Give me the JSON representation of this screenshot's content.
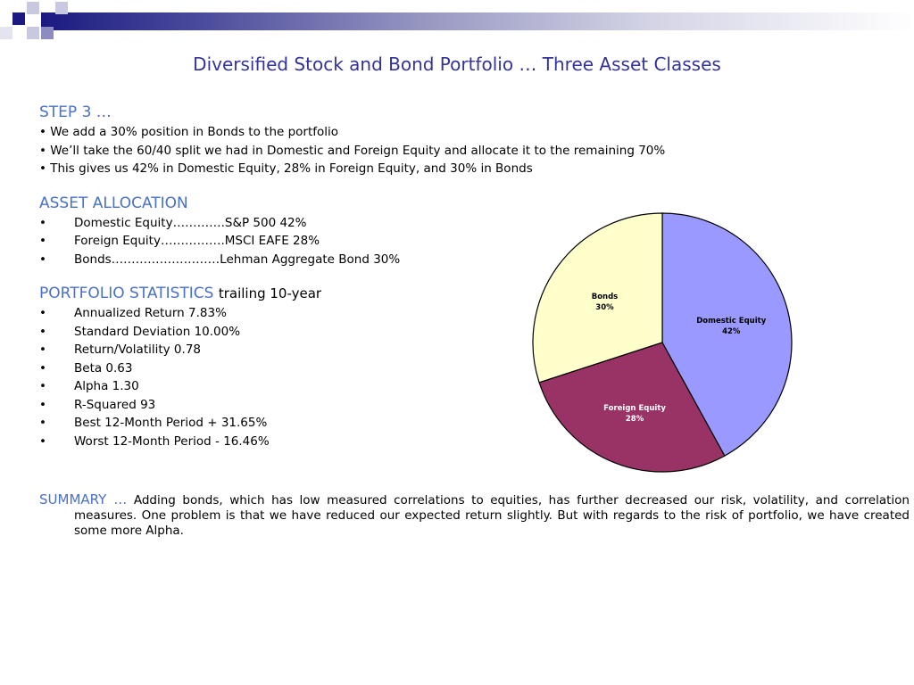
{
  "slide": {
    "title": "Diversified Stock and Bond Portfolio … Three Asset Classes"
  },
  "step": {
    "heading": "STEP 3 …",
    "bullets": [
      "• We add a 30% position in Bonds to the portfolio",
      "• We’ll take the 60/40 split we had in Domestic and Foreign Equity and allocate it to the remaining 70%",
      "• This gives us 42% in Domestic Equity, 28% in Foreign Equity, and 30% in Bonds"
    ]
  },
  "asset_allocation": {
    "heading": "ASSET ALLOCATION",
    "items": [
      "Domestic Equity………….S&P 500 42%",
      "Foreign Equity…………….MSCI EAFE 28%",
      "Bonds………………………Lehman Aggregate Bond 30%"
    ]
  },
  "portfolio_statistics": {
    "heading": "PORTFOLIO STATISTICS",
    "subheading": "trailing 10-year",
    "items": [
      "Annualized Return 7.83%",
      "Standard Deviation 10.00%",
      "Return/Volatility 0.78",
      "Beta 0.63",
      "Alpha 1.30",
      "R-Squared 93",
      "Best 12-Month Period + 31.65%",
      "Worst 12-Month Period - 16.46%"
    ]
  },
  "summary": {
    "heading": "SUMMARY …",
    "text": "Adding bonds, which has low measured correlations to equities, has further decreased our risk, volatility, and correlation measures. One problem is that we have reduced our expected return slightly. But with regards to the risk of portfolio, we have created some more Alpha."
  },
  "bullet_char": "•",
  "colors": {
    "title": "#33339a",
    "heading": "#4a70c8",
    "domestic": "#9999ff",
    "foreign": "#993366",
    "bonds": "#ffffcc"
  },
  "chart_data": {
    "type": "pie",
    "title": "",
    "categories": [
      "Domestic Equity",
      "Foreign Equity",
      "Bonds"
    ],
    "values": [
      42,
      28,
      30
    ],
    "labels": [
      "42%",
      "28%",
      "30%"
    ],
    "colors": [
      "#9999ff",
      "#993366",
      "#ffffcc"
    ],
    "legend": "none"
  }
}
